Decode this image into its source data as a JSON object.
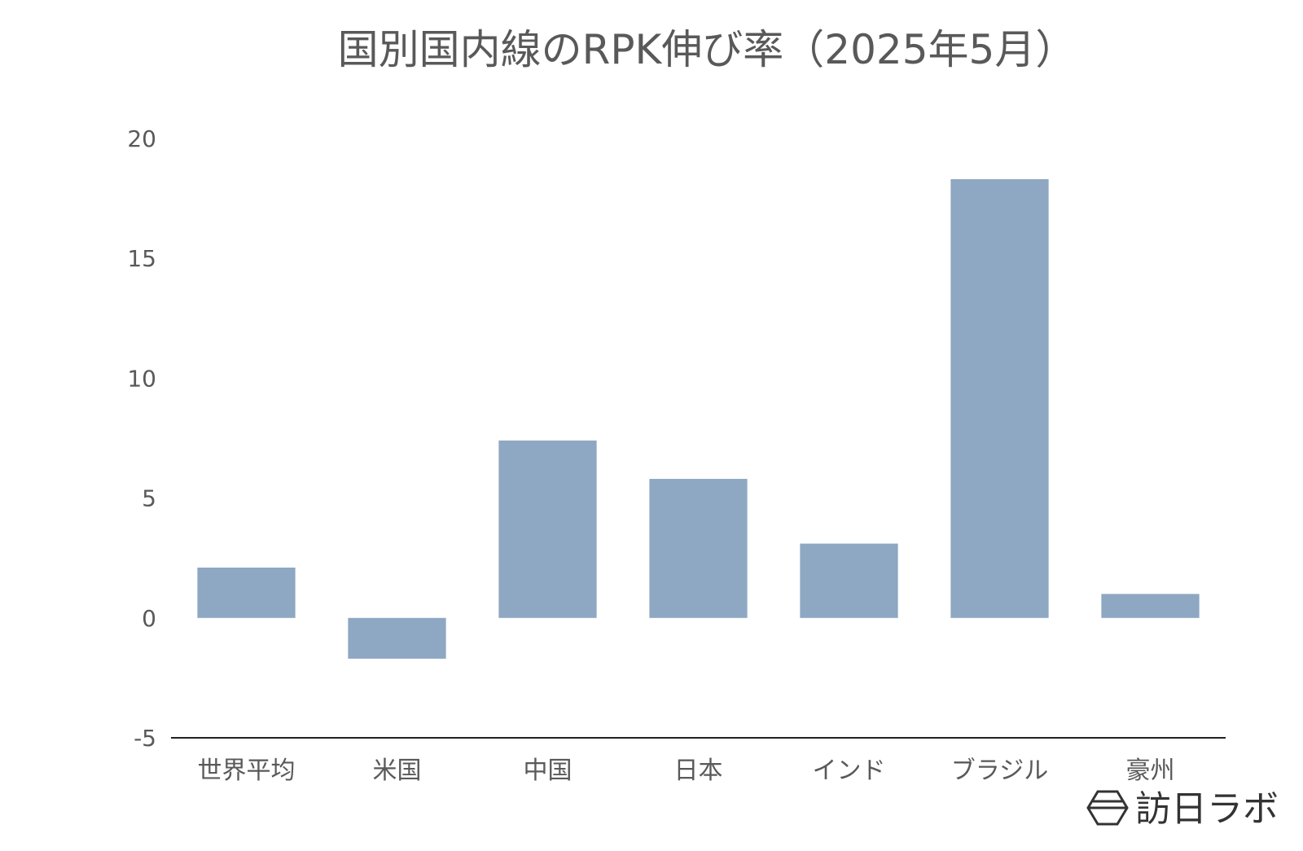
{
  "chart_data": {
    "type": "bar",
    "title": "国別国内線のRPK伸び率（2025年5月）",
    "xlabel": "",
    "ylabel": "",
    "categories": [
      "世界平均",
      "米国",
      "中国",
      "日本",
      "インド",
      "ブラジル",
      "豪州"
    ],
    "values": [
      2.1,
      -1.7,
      7.4,
      5.8,
      3.1,
      18.3,
      1.0
    ],
    "ylim": [
      -5,
      20
    ],
    "yticks": [
      "20",
      "15",
      "10",
      "5",
      "0",
      "-5"
    ],
    "ytick_values": [
      20,
      15,
      10,
      5,
      0,
      -5
    ],
    "grid": false,
    "legend": "none",
    "colors": {
      "bar": "#8ea7c2",
      "axis": "#222222",
      "text": "#595959"
    }
  },
  "branding": {
    "logo_text": "訪日ラボ",
    "logo_icon": "hexagon-logo-icon"
  }
}
